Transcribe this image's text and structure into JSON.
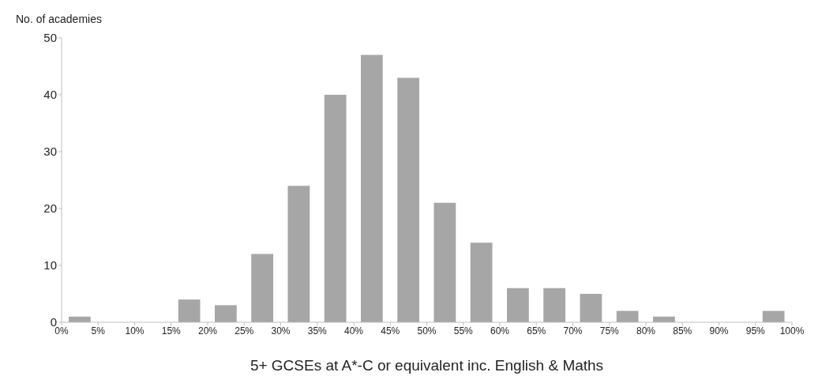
{
  "chart_data": {
    "type": "histogram",
    "xlabel": "5+ GCSEs at A*-C or equivalent inc. English & Maths",
    "ylabel": "No. of academies",
    "bins": [
      0,
      5,
      10,
      15,
      20,
      25,
      30,
      35,
      40,
      45,
      50,
      55,
      60,
      65,
      70,
      75,
      80,
      85,
      90,
      95,
      100
    ],
    "values": [
      1,
      0,
      0,
      4,
      3,
      12,
      24,
      40,
      47,
      43,
      21,
      14,
      6,
      6,
      5,
      2,
      1,
      0,
      0,
      2
    ],
    "color": "#a6a6a6",
    "xlim": [
      0,
      100
    ],
    "xticks": [
      {
        "value": 0,
        "label": "0%"
      },
      {
        "value": 5,
        "label": "5%"
      },
      {
        "value": 10,
        "label": "10%"
      },
      {
        "value": 15,
        "label": "15%"
      },
      {
        "value": 20,
        "label": "20%"
      },
      {
        "value": 25,
        "label": "25%"
      },
      {
        "value": 30,
        "label": "30%"
      },
      {
        "value": 35,
        "label": "35%"
      },
      {
        "value": 40,
        "label": "40%"
      },
      {
        "value": 45,
        "label": "45%"
      },
      {
        "value": 50,
        "label": "50%"
      },
      {
        "value": 55,
        "label": "55%"
      },
      {
        "value": 60,
        "label": "60%"
      },
      {
        "value": 65,
        "label": "65%"
      },
      {
        "value": 70,
        "label": "70%"
      },
      {
        "value": 75,
        "label": "75%"
      },
      {
        "value": 80,
        "label": "80%"
      },
      {
        "value": 85,
        "label": "85%"
      },
      {
        "value": 90,
        "label": "90%"
      },
      {
        "value": 95,
        "label": "95%"
      },
      {
        "value": 100,
        "label": "100%"
      }
    ],
    "ylim": [
      0,
      50
    ],
    "yticks": [
      0,
      10,
      20,
      30,
      40,
      50
    ],
    "grid": false,
    "legend": false
  }
}
